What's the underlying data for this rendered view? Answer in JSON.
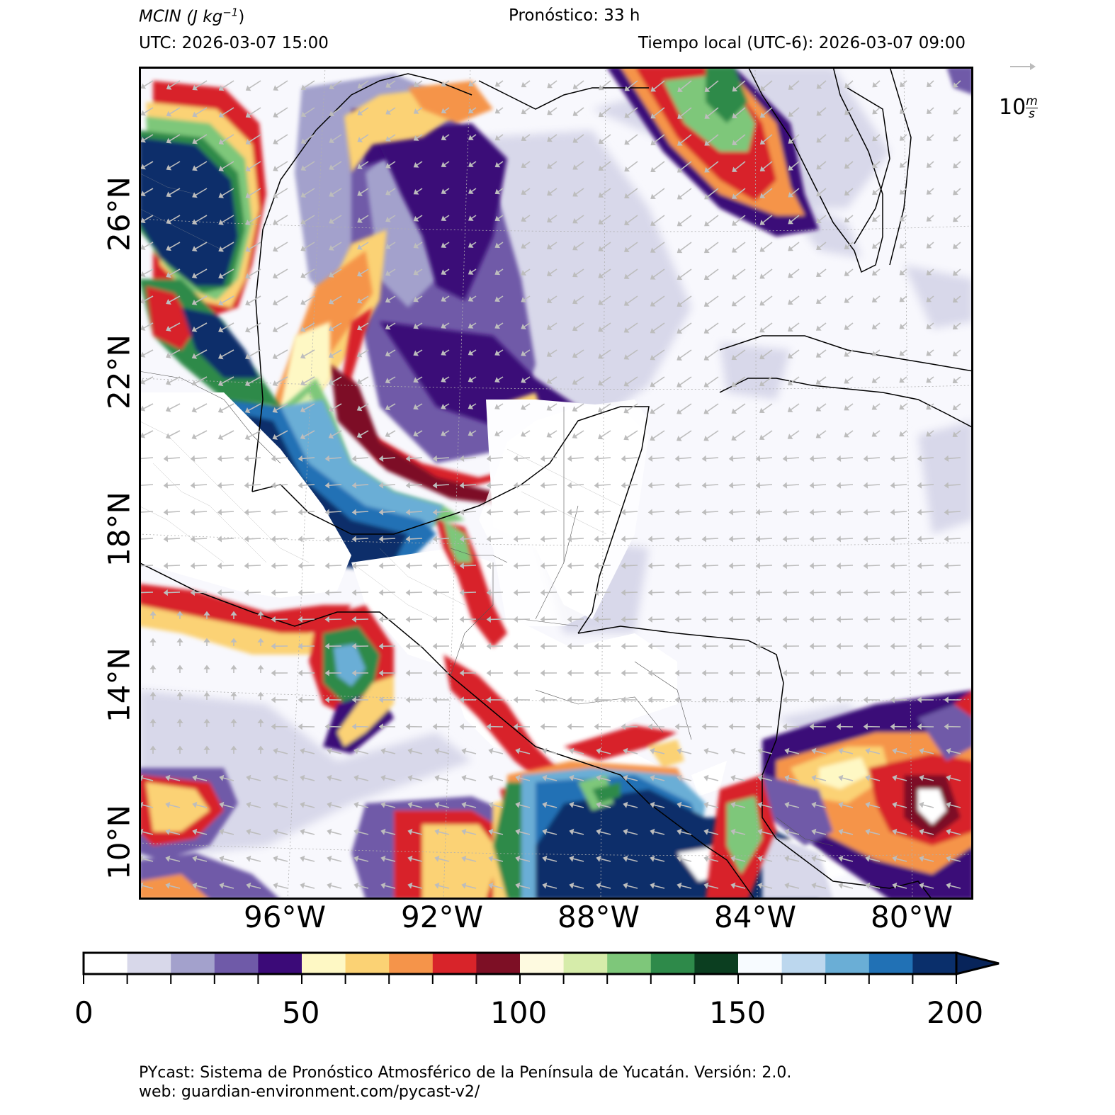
{
  "header": {
    "variable_label": "MCIN",
    "units_label": "(J kg",
    "units_exp": "−1",
    "units_close": ")",
    "forecast": "Pronóstico: 33 h",
    "utc": "UTC:  2026-03-07 15:00",
    "local_time": "Tiempo local (UTC-6): 2026-03-07 09:00"
  },
  "wind_legend": {
    "value": "10",
    "unit_num": "m",
    "unit_den": "s"
  },
  "map": {
    "lon_ticks": [
      "96°W",
      "92°W",
      "88°W",
      "84°W",
      "80°W"
    ],
    "lat_ticks": [
      "26°N",
      "22°N",
      "18°N",
      "14°N",
      "10°N"
    ],
    "extent": {
      "lon": [
        -99.8,
        -78.6
      ],
      "lat": [
        8.8,
        28.9
      ]
    }
  },
  "colorbar": {
    "ticks": [
      "0",
      "50",
      "100",
      "150",
      "200"
    ],
    "min": 0,
    "max": 200,
    "step": 10,
    "extend": "max",
    "colors": [
      "#ffffff",
      "#d8d8ea",
      "#a3a1cc",
      "#6f5aa8",
      "#3b0a78",
      "#fef8c4",
      "#fbd274",
      "#f5944a",
      "#d8242a",
      "#7d0f25",
      "#fefae0",
      "#d6ecaa",
      "#7ec77a",
      "#2e8a4a",
      "#0b3e20",
      "#f7fbff",
      "#bcd7ee",
      "#6aaed6",
      "#2171b5",
      "#0a2f6b"
    ],
    "extend_color": "#08245a"
  },
  "footer": {
    "line1": "PYcast: Sistema de Pronóstico Atmosférico de la Península de Yucatán. Versión: 2.0.",
    "line2": "web: guardian-environment.com/pycast-v2/"
  }
}
